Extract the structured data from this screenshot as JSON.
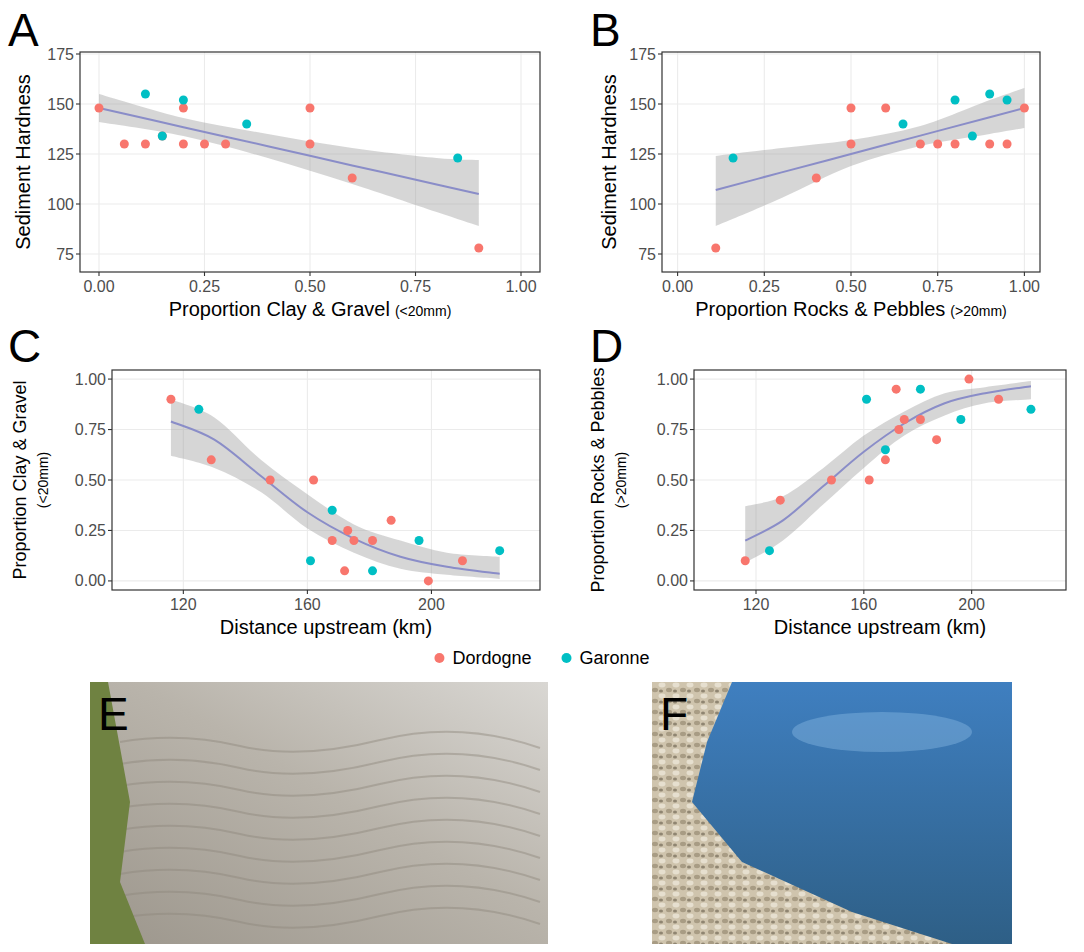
{
  "chart_data": [
    {
      "type": "scatter",
      "label": "A",
      "y_label": "Sediment Hardness",
      "x_label": "Proportion Clay & Gravel",
      "x_label_note": "(<20mm)",
      "grid": true,
      "legend": "bottom",
      "xlim": [
        -0.045,
        1.045
      ],
      "ylim": [
        66,
        176
      ],
      "xticks": [
        {
          "value": 0,
          "label": "0.00"
        },
        {
          "value": 0.25,
          "label": "0.25"
        },
        {
          "value": 0.5,
          "label": "0.50"
        },
        {
          "value": 0.75,
          "label": "0.75"
        },
        {
          "value": 1,
          "label": "1.00"
        }
      ],
      "yticks": [
        75,
        100,
        125,
        150,
        175
      ],
      "series": [
        {
          "name": "Dordogne",
          "color": "#F8766D",
          "x": [
            0.0,
            0.06,
            0.11,
            0.2,
            0.2,
            0.25,
            0.3,
            0.5,
            0.5,
            0.6,
            0.9,
            0.15
          ],
          "values": [
            148,
            130,
            130,
            148,
            130,
            130,
            130,
            148,
            130,
            113,
            78,
            134
          ]
        },
        {
          "name": "Garonne",
          "color": "#00BFC4",
          "x": [
            0.11,
            0.15,
            0.2,
            0.35,
            0.85
          ],
          "values": [
            155,
            134,
            152,
            140,
            123
          ]
        }
      ],
      "trend": {
        "color": "#8A8DC8",
        "x": [
          0,
          0.2,
          0.4,
          0.6,
          0.8,
          0.9
        ],
        "values": [
          148,
          138.4,
          128.9,
          119.3,
          109.8,
          105
        ],
        "lower": [
          141,
          134,
          123,
          110,
          96,
          89
        ],
        "upper": [
          155,
          143,
          135,
          128,
          123,
          122
        ]
      }
    },
    {
      "type": "scatter",
      "label": "B",
      "y_label": "Sediment Hardness",
      "x_label": "Proportion Rocks & Pebbles",
      "x_label_note": "(>20mm)",
      "grid": true,
      "xlim": [
        -0.045,
        1.045
      ],
      "ylim": [
        66,
        176
      ],
      "xticks": [
        {
          "value": 0,
          "label": "0.00"
        },
        {
          "value": 0.25,
          "label": "0.25"
        },
        {
          "value": 0.5,
          "label": "0.50"
        },
        {
          "value": 0.75,
          "label": "0.75"
        },
        {
          "value": 1,
          "label": "1.00"
        }
      ],
      "yticks": [
        75,
        100,
        125,
        150,
        175
      ],
      "series": [
        {
          "name": "Dordogne",
          "color": "#F8766D",
          "x": [
            0.11,
            0.4,
            0.5,
            0.5,
            0.6,
            0.7,
            0.75,
            0.8,
            0.9,
            0.95,
            1.0
          ],
          "values": [
            78,
            113,
            148,
            130,
            148,
            130,
            130,
            130,
            130,
            130,
            148
          ]
        },
        {
          "name": "Garonne",
          "color": "#00BFC4",
          "x": [
            0.16,
            0.65,
            0.8,
            0.85,
            0.9,
            0.95
          ],
          "values": [
            123,
            140,
            152,
            134,
            155,
            152
          ]
        }
      ],
      "trend": {
        "color": "#8A8DC8",
        "x": [
          0.11,
          0.3,
          0.5,
          0.7,
          0.9,
          1.0
        ],
        "values": [
          107,
          115.8,
          125,
          134.2,
          143.4,
          148
        ],
        "lower": [
          89,
          103,
          119,
          129,
          135,
          138
        ],
        "upper": [
          124,
          128,
          132,
          139,
          152,
          158
        ]
      }
    },
    {
      "type": "scatter",
      "label": "C",
      "y_label": "Proportion Clay & Gravel",
      "y_label_note": "(<20mm)",
      "x_label": "Distance upstream (km)",
      "grid": true,
      "xlim": [
        97,
        235
      ],
      "ylim": [
        -0.045,
        1.045
      ],
      "xticks": [
        120,
        160,
        200
      ],
      "yticks": [
        {
          "value": 0,
          "label": "0.00"
        },
        {
          "value": 0.25,
          "label": "0.25"
        },
        {
          "value": 0.5,
          "label": "0.50"
        },
        {
          "value": 0.75,
          "label": "0.75"
        },
        {
          "value": 1,
          "label": "1.00"
        }
      ],
      "series": [
        {
          "name": "Dordogne",
          "color": "#F8766D",
          "x": [
            116,
            129,
            148,
            162,
            168,
            172,
            173,
            175,
            181,
            187,
            199,
            210
          ],
          "values": [
            0.9,
            0.6,
            0.5,
            0.5,
            0.2,
            0.05,
            0.25,
            0.2,
            0.2,
            0.3,
            0.0,
            0.1
          ]
        },
        {
          "name": "Garonne",
          "color": "#00BFC4",
          "x": [
            125,
            161,
            168,
            181,
            196,
            222
          ],
          "values": [
            0.85,
            0.1,
            0.35,
            0.05,
            0.2,
            0.15
          ]
        }
      ],
      "trend": {
        "color": "#8A8DC8",
        "x": [
          116,
          130,
          145,
          160,
          175,
          190,
          205,
          222
        ],
        "values": [
          0.79,
          0.7,
          0.52,
          0.34,
          0.21,
          0.12,
          0.07,
          0.035
        ],
        "lower": [
          0.62,
          0.56,
          0.44,
          0.26,
          0.14,
          0.06,
          0.03,
          0.01
        ],
        "upper": [
          0.9,
          0.81,
          0.6,
          0.43,
          0.28,
          0.2,
          0.14,
          0.12
        ]
      }
    },
    {
      "type": "scatter",
      "label": "D",
      "y_label": "Proportion Rocks & Pebbles",
      "y_label_note": "(>20mm)",
      "x_label": "Distance upstream (km)",
      "grid": true,
      "xlim": [
        97,
        235
      ],
      "ylim": [
        -0.045,
        1.045
      ],
      "xticks": [
        120,
        160,
        200
      ],
      "yticks": [
        {
          "value": 0,
          "label": "0.00"
        },
        {
          "value": 0.25,
          "label": "0.25"
        },
        {
          "value": 0.5,
          "label": "0.50"
        },
        {
          "value": 0.75,
          "label": "0.75"
        },
        {
          "value": 1,
          "label": "1.00"
        }
      ],
      "series": [
        {
          "name": "Dordogne",
          "color": "#F8766D",
          "x": [
            116,
            129,
            148,
            162,
            168,
            172,
            173,
            175,
            181,
            187,
            199,
            210
          ],
          "values": [
            0.1,
            0.4,
            0.5,
            0.5,
            0.6,
            0.95,
            0.75,
            0.8,
            0.8,
            0.7,
            1.0,
            0.9
          ]
        },
        {
          "name": "Garonne",
          "color": "#00BFC4",
          "x": [
            125,
            161,
            168,
            181,
            196,
            222
          ],
          "values": [
            0.15,
            0.9,
            0.65,
            0.95,
            0.8,
            0.85
          ]
        }
      ],
      "trend": {
        "color": "#8A8DC8",
        "x": [
          116,
          130,
          145,
          160,
          175,
          190,
          205,
          222
        ],
        "values": [
          0.2,
          0.3,
          0.47,
          0.64,
          0.78,
          0.88,
          0.93,
          0.965
        ],
        "lower": [
          0.09,
          0.2,
          0.38,
          0.56,
          0.72,
          0.82,
          0.88,
          0.9
        ],
        "upper": [
          0.37,
          0.42,
          0.56,
          0.72,
          0.84,
          0.93,
          0.96,
          0.99
        ]
      }
    }
  ],
  "photos": [
    {
      "label": "E"
    },
    {
      "label": "F"
    }
  ]
}
